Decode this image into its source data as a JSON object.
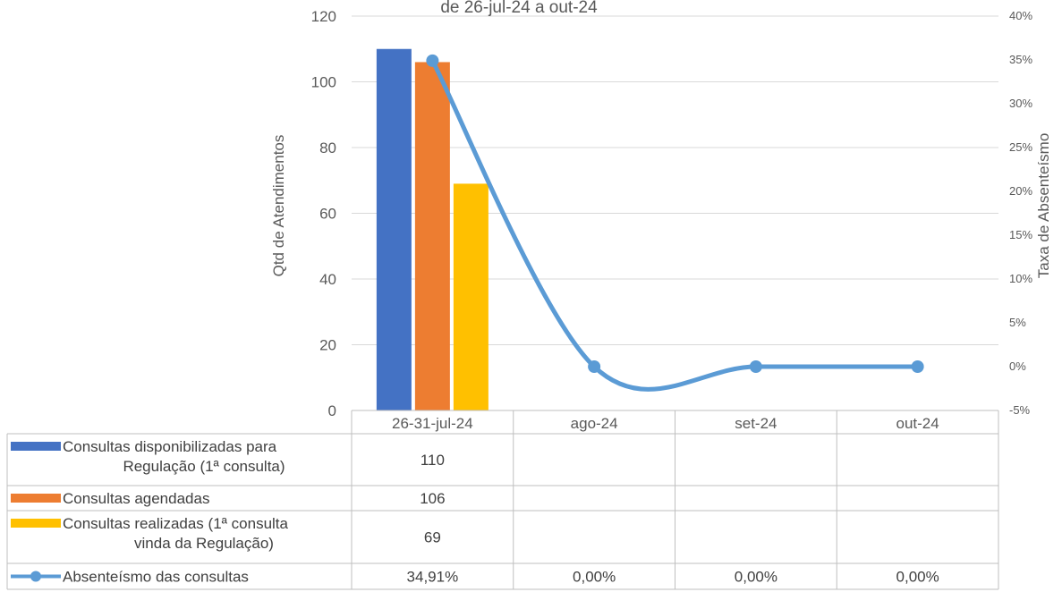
{
  "chart_data": {
    "type": "bar",
    "title": "de 26-jul-24 a out-24",
    "ylabel": "Qtd de Atendimentos",
    "y2label": "Taxa de Absenteísmo",
    "ylim": [
      0,
      120
    ],
    "y2lim": [
      -5,
      40
    ],
    "y_ticks": [
      "0",
      "20",
      "40",
      "60",
      "80",
      "100",
      "120"
    ],
    "y2_ticks": [
      "-5%",
      "0%",
      "5%",
      "10%",
      "15%",
      "20%",
      "25%",
      "30%",
      "35%",
      "40%"
    ],
    "grid": true,
    "categories": [
      "26-31-jul-24",
      "ago-24",
      "set-24",
      "out-24"
    ],
    "series": [
      {
        "name": "Consultas disponibilizadas para Regulação (1ª consulta)",
        "type": "bar",
        "color": "#4472C4",
        "values": [
          110,
          null,
          null,
          null
        ],
        "labels": [
          "110",
          "",
          "",
          ""
        ]
      },
      {
        "name": "Consultas agendadas",
        "type": "bar",
        "color": "#ED7D31",
        "values": [
          106,
          null,
          null,
          null
        ],
        "labels": [
          "106",
          "",
          "",
          ""
        ]
      },
      {
        "name": "Consultas realizadas (1ª consulta vinda da Regulação)",
        "type": "bar",
        "color": "#FFC000",
        "values": [
          69,
          null,
          null,
          null
        ],
        "labels": [
          "69",
          "",
          "",
          ""
        ]
      },
      {
        "name": "Absenteísmo das consultas",
        "type": "line",
        "axis": "right",
        "color": "#5B9BD5",
        "values": [
          34.91,
          0,
          0,
          0
        ],
        "labels": [
          "34,91%",
          "0,00%",
          "0,00%",
          "0,00%"
        ]
      }
    ],
    "legend": "data-table"
  }
}
